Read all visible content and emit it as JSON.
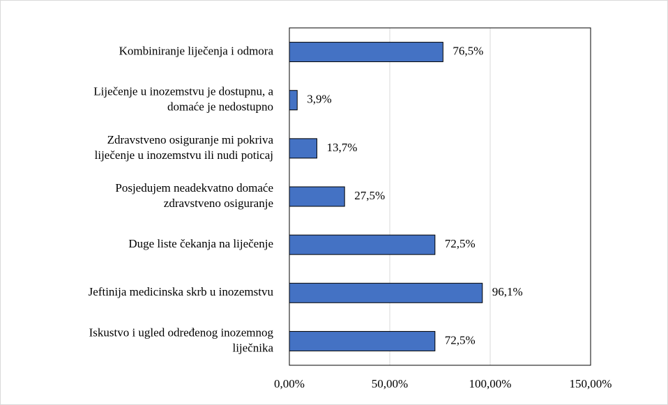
{
  "chart_data": {
    "type": "bar",
    "orientation": "horizontal",
    "categories": [
      [
        "Kombiniranje liječenja i odmora"
      ],
      [
        "Liječenje u inozemstvu je dostupnu, a",
        "domaće je nedostupno"
      ],
      [
        "Zdravstveno osiguranje mi pokriva",
        "liječenje u inozemstvu ili nudi poticaj"
      ],
      [
        "Posjedujem neadekvatno domaće",
        "zdravstveno osiguranje"
      ],
      [
        "Duge liste čekanja na liječenje"
      ],
      [
        "Jeftinija medicinska skrb u inozemstvu"
      ],
      [
        "Iskustvo i ugled određenog inozemnog",
        "liječnika"
      ]
    ],
    "values": [
      76.5,
      3.9,
      13.7,
      27.5,
      72.5,
      96.1,
      72.5
    ],
    "value_labels": [
      "76,5%",
      "3,9%",
      "13,7%",
      "27,5%",
      "72,5%",
      "96,1%",
      "72,5%"
    ],
    "color": "#4472c4",
    "xlim": [
      0,
      150
    ],
    "xticks": [
      {
        "value": 0,
        "label": "0,00%"
      },
      {
        "value": 50,
        "label": "50,00%"
      },
      {
        "value": 100,
        "label": "100,00%"
      },
      {
        "value": 150,
        "label": "150,00%"
      }
    ],
    "grid": true
  }
}
